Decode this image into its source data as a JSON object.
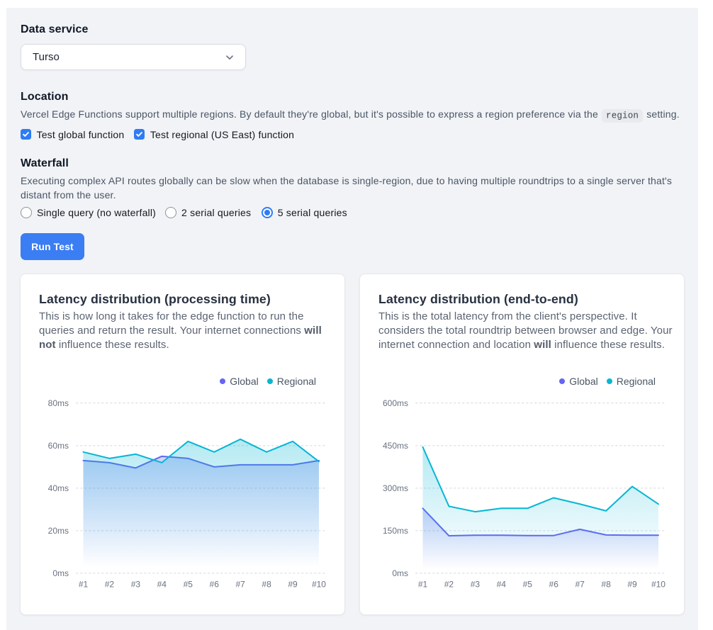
{
  "data_service": {
    "heading": "Data service",
    "select_value": "Turso"
  },
  "location": {
    "heading": "Location",
    "description_before_code": "Vercel Edge Functions support multiple regions. By default they're global, but it's possible to express a region preference via the",
    "code": "region",
    "description_after_code": "setting.",
    "checkboxes": [
      {
        "label": "Test global function",
        "checked": true
      },
      {
        "label": "Test regional (US East) function",
        "checked": true
      }
    ]
  },
  "waterfall": {
    "heading": "Waterfall",
    "description": "Executing complex API routes globally can be slow when the database is single-region, due to having multiple roundtrips to a single server that's distant from the user.",
    "radios": [
      {
        "label": "Single query (no waterfall)",
        "selected": false
      },
      {
        "label": "2 serial queries",
        "selected": false
      },
      {
        "label": "5 serial queries",
        "selected": true
      }
    ]
  },
  "run_button": {
    "label": "Run Test"
  },
  "colors": {
    "accent_blue": "#2e7cf6",
    "button_blue": "#3b7df2",
    "series_global": "#6366f1",
    "series_regional": "#06b6d4",
    "gridline": "#d2d6dd",
    "panel_bg": "#f1f3f6"
  },
  "chart_data": [
    {
      "type": "area",
      "title": "Latency distribution (processing time)",
      "description_lines": [
        [
          {
            "t": "This is how long it takes for the edge function to run the",
            "b": false
          }
        ],
        [
          {
            "t": "queries and return the result. Your internet connections ",
            "b": false
          },
          {
            "t": "will",
            "b": true
          }
        ],
        [
          {
            "t": "not",
            "b": true
          },
          {
            "t": " influence these results.",
            "b": false
          }
        ]
      ],
      "legend": [
        "Global",
        "Regional"
      ],
      "categories": [
        "#1",
        "#2",
        "#3",
        "#4",
        "#5",
        "#6",
        "#7",
        "#8",
        "#9",
        "#10"
      ],
      "series": [
        {
          "name": "Global",
          "color": "#6366f1",
          "values": [
            53,
            52,
            49.5,
            55,
            54,
            50,
            51,
            51,
            51,
            53
          ]
        },
        {
          "name": "Regional",
          "color": "#06b6d4",
          "values": [
            57,
            54,
            56,
            52,
            62,
            57,
            63,
            57,
            62,
            52.5
          ]
        }
      ],
      "ylim": [
        0,
        80
      ],
      "yticks": [
        0,
        20,
        40,
        60,
        80
      ],
      "ytick_labels": [
        "0ms",
        "20ms",
        "40ms",
        "60ms",
        "80ms"
      ],
      "xlabel": "",
      "ylabel": "",
      "grid": "dashed-horizontal",
      "legend_position": "top-right"
    },
    {
      "type": "area",
      "title": "Latency distribution (end-to-end)",
      "description_lines": [
        [
          {
            "t": "This is the total latency from the client's perspective. It",
            "b": false
          }
        ],
        [
          {
            "t": "considers the total roundtrip between browser and edge. Your",
            "b": false
          }
        ],
        [
          {
            "t": "internet connection and location ",
            "b": false
          },
          {
            "t": "will",
            "b": true
          },
          {
            "t": " influence these results.",
            "b": false
          }
        ]
      ],
      "legend": [
        "Global",
        "Regional"
      ],
      "categories": [
        "#1",
        "#2",
        "#3",
        "#4",
        "#5",
        "#6",
        "#7",
        "#8",
        "#9",
        "#10"
      ],
      "series": [
        {
          "name": "Global",
          "color": "#6366f1",
          "values": [
            229,
            132,
            134,
            134,
            133,
            133,
            155,
            135,
            134,
            134
          ]
        },
        {
          "name": "Regional",
          "color": "#06b6d4",
          "values": [
            445,
            236,
            217,
            229,
            229,
            266,
            244,
            220,
            306,
            244
          ]
        }
      ],
      "ylim": [
        0,
        600
      ],
      "yticks": [
        0,
        150,
        300,
        450,
        600
      ],
      "ytick_labels": [
        "0ms",
        "150ms",
        "300ms",
        "450ms",
        "600ms"
      ],
      "xlabel": "",
      "ylabel": "",
      "grid": "dashed-horizontal",
      "legend_position": "top-right"
    }
  ]
}
